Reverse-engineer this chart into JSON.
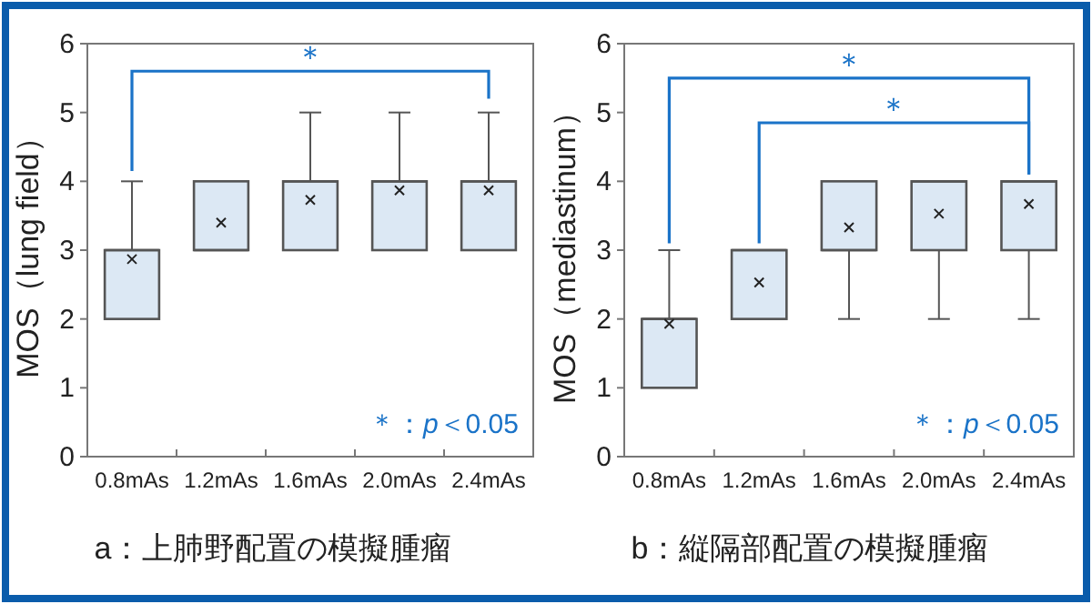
{
  "chart_data": [
    {
      "type": "box",
      "title": "a：上肺野配置の模擬腫瘤",
      "ylabel": "MOS（lung field）",
      "categories": [
        "0.8mAs",
        "1.2mAs",
        "1.6mAs",
        "2.0mAs",
        "2.4mAs"
      ],
      "ylim": [
        0,
        6
      ],
      "yticks": [
        0,
        1,
        2,
        3,
        4,
        5,
        6
      ],
      "series": [
        {
          "color": "#dce8f4",
          "boxes": [
            {
              "low": 2,
              "q1": 2,
              "median": 3,
              "q3": 3,
              "high": 4,
              "mean": 2.87
            },
            {
              "low": 3,
              "q1": 3,
              "median": 3,
              "q3": 4,
              "high": 4,
              "mean": 3.4
            },
            {
              "low": 3,
              "q1": 3,
              "median": 4,
              "q3": 4,
              "high": 5,
              "mean": 3.73
            },
            {
              "low": 3,
              "q1": 3,
              "median": 4,
              "q3": 4,
              "high": 5,
              "mean": 3.87
            },
            {
              "low": 3,
              "q1": 3,
              "median": 4,
              "q3": 4,
              "high": 5,
              "mean": 3.87
            }
          ]
        }
      ],
      "annotations": [
        "＊",
        "＊：*p*＜0.05"
      ]
    },
    {
      "type": "box",
      "title": "b：縦隔部配置の模擬腫瘤",
      "ylabel": "MOS（mediastinum）",
      "categories": [
        "0.8mAs",
        "1.2mAs",
        "1.6mAs",
        "2.0mAs",
        "2.4mAs"
      ],
      "ylim": [
        0,
        6
      ],
      "yticks": [
        0,
        1,
        2,
        3,
        4,
        5,
        6
      ],
      "series": [
        {
          "color": "#dce8f4",
          "boxes": [
            {
              "low": 1,
              "q1": 1,
              "median": 2,
              "q3": 2,
              "high": 3,
              "mean": 1.93
            },
            {
              "low": 2,
              "q1": 2,
              "median": 3,
              "q3": 3,
              "high": 3,
              "mean": 2.53
            },
            {
              "low": 2,
              "q1": 3,
              "median": 3,
              "q3": 4,
              "high": 4,
              "mean": 3.33
            },
            {
              "low": 2,
              "q1": 3,
              "median": 4,
              "q3": 4,
              "high": 4,
              "mean": 3.53
            },
            {
              "low": 2,
              "q1": 3,
              "median": 4,
              "q3": 4,
              "high": 4,
              "mean": 3.67
            }
          ]
        }
      ],
      "annotations": [
        "＊",
        "＊",
        "＊：*p*＜0.05"
      ]
    }
  ]
}
